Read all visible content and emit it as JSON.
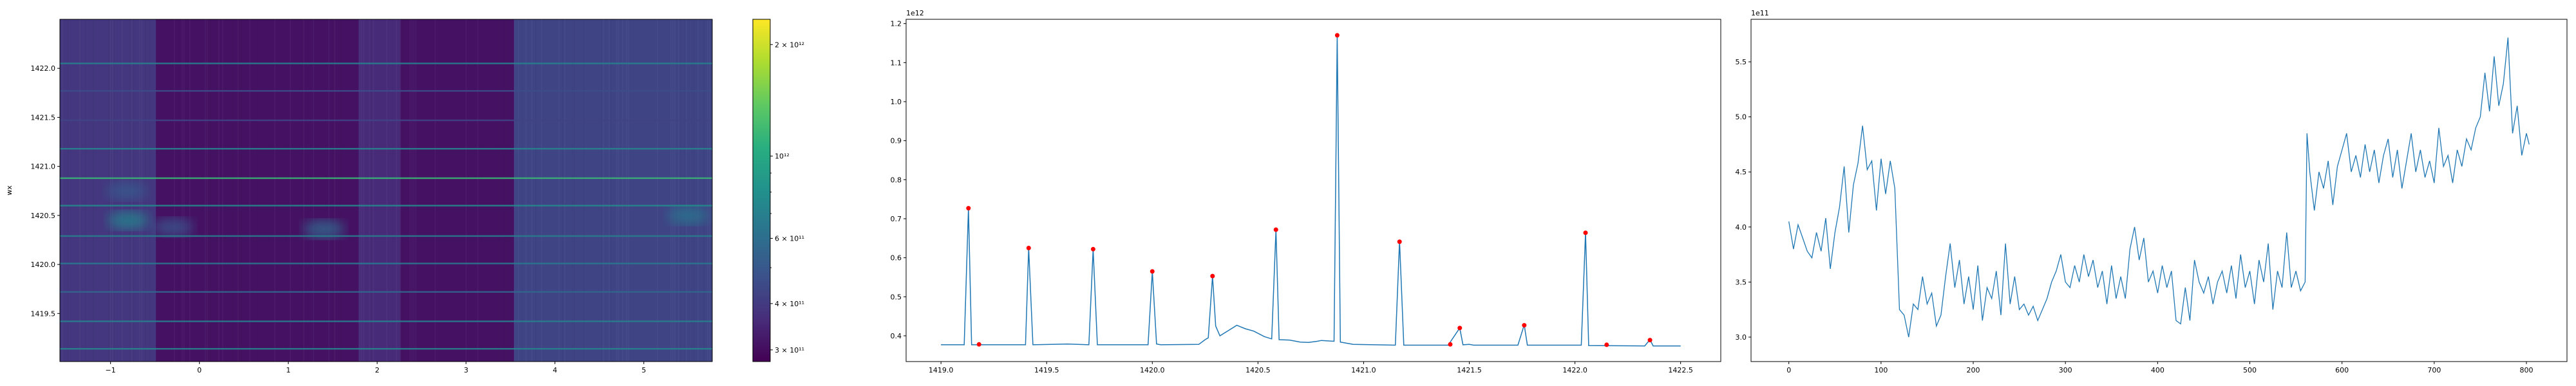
{
  "chart_data": [
    {
      "type": "heatmap",
      "ylabel": "wx",
      "xlim": [
        -1.57,
        5.77
      ],
      "ylim": [
        1419.01,
        1422.5
      ],
      "xticks": [
        -1,
        0,
        1,
        2,
        3,
        4,
        5
      ],
      "yticks": [
        1419.5,
        1420.0,
        1420.5,
        1421.0,
        1421.5,
        1422.0
      ],
      "colormap": "viridis",
      "color_scale": "log",
      "color_range": [
        279000000000.0,
        2340000000000.0
      ],
      "colorbar_ticks": [
        {
          "value": 2000000000000.0,
          "label": "2 × 10¹²"
        },
        {
          "value": 1000000000000.0,
          "label": "10¹²"
        },
        {
          "value": 600000000000.0,
          "label": "6 × 10¹¹"
        },
        {
          "value": 400000000000.0,
          "label": "4 × 10¹¹"
        },
        {
          "value": 300000000000.0,
          "label": "3 × 10¹¹"
        }
      ],
      "colorbar_minor_ticks": [
        500000000000.0,
        700000000000.0,
        800000000000.0,
        900000000000.0
      ],
      "column_bands": [
        {
          "from": -1.57,
          "to": -0.49,
          "value": 390000000000.0
        },
        {
          "from": -0.49,
          "to": 1.79,
          "value": 310000000000.0
        },
        {
          "from": 1.79,
          "to": 2.26,
          "value": 360000000000.0
        },
        {
          "from": 2.26,
          "to": 3.54,
          "value": 310000000000.0
        },
        {
          "from": 3.54,
          "to": 5.77,
          "value": 430000000000.0
        }
      ],
      "row_lines": [
        {
          "y": 1422.05,
          "value": 700000000000.0
        },
        {
          "y": 1421.77,
          "value": 460000000000.0
        },
        {
          "y": 1421.47,
          "value": 430000000000.0
        },
        {
          "y": 1421.18,
          "value": 720000000000.0
        },
        {
          "y": 1420.88,
          "value": 1150000000000.0
        },
        {
          "y": 1420.6,
          "value": 760000000000.0
        },
        {
          "y": 1420.29,
          "value": 680000000000.0
        },
        {
          "y": 1420.01,
          "value": 660000000000.0
        },
        {
          "y": 1419.72,
          "value": 560000000000.0
        },
        {
          "y": 1419.42,
          "value": 700000000000.0
        },
        {
          "y": 1419.14,
          "value": 720000000000.0
        }
      ],
      "blobs": [
        {
          "x": -0.8,
          "y": 1420.45,
          "value": 700000000000.0
        },
        {
          "x": -0.82,
          "y": 1420.75,
          "value": 500000000000.0
        },
        {
          "x": -0.3,
          "y": 1420.38,
          "value": 480000000000.0
        },
        {
          "x": 1.4,
          "y": 1420.36,
          "value": 560000000000.0
        },
        {
          "x": 5.5,
          "y": 1420.5,
          "value": 620000000000.0
        }
      ]
    },
    {
      "type": "line",
      "offset_text": "1e12",
      "xlim": [
        1418.835,
        1422.69
      ],
      "ylim": [
        0.334,
        1.211
      ],
      "xticks": [
        1419.0,
        1419.5,
        1420.0,
        1420.5,
        1421.0,
        1421.5,
        1422.0,
        1422.5
      ],
      "yticks": [
        0.4,
        0.5,
        0.6,
        0.7,
        0.8,
        0.9,
        1.0,
        1.1,
        1.2
      ],
      "line_color": "#1f77b4",
      "marker_color": "#ff0000",
      "x": [
        1419.0,
        1419.11,
        1419.13,
        1419.145,
        1419.4,
        1419.415,
        1419.435,
        1419.6,
        1419.7,
        1419.72,
        1419.74,
        1419.98,
        1420.0,
        1420.02,
        1420.04,
        1420.22,
        1420.25,
        1420.265,
        1420.285,
        1420.3,
        1420.32,
        1420.35,
        1420.4,
        1420.44,
        1420.48,
        1420.53,
        1420.565,
        1420.585,
        1420.6,
        1420.65,
        1420.7,
        1420.74,
        1420.78,
        1420.8,
        1420.86,
        1420.875,
        1420.89,
        1420.95,
        1421.15,
        1421.17,
        1421.19,
        1421.4,
        1421.455,
        1421.47,
        1421.5,
        1421.52,
        1421.73,
        1421.76,
        1421.775,
        1422.03,
        1422.05,
        1422.065,
        1422.33,
        1422.355,
        1422.37,
        1422.5
      ],
      "y": [
        0.377,
        0.377,
        0.727,
        0.377,
        0.377,
        0.625,
        0.377,
        0.379,
        0.377,
        0.622,
        0.377,
        0.377,
        0.565,
        0.379,
        0.377,
        0.378,
        0.39,
        0.395,
        0.553,
        0.425,
        0.4,
        0.41,
        0.427,
        0.418,
        0.412,
        0.398,
        0.392,
        0.672,
        0.39,
        0.389,
        0.384,
        0.383,
        0.386,
        0.388,
        0.386,
        1.17,
        0.384,
        0.378,
        0.376,
        0.643,
        0.376,
        0.376,
        0.42,
        0.377,
        0.378,
        0.376,
        0.376,
        0.428,
        0.376,
        0.376,
        0.665,
        0.375,
        0.374,
        0.39,
        0.374,
        0.374
      ],
      "markers": [
        {
          "x": 1419.13,
          "y": 0.727
        },
        {
          "x": 1419.18,
          "y": 0.378
        },
        {
          "x": 1419.415,
          "y": 0.625
        },
        {
          "x": 1419.72,
          "y": 0.622
        },
        {
          "x": 1420.0,
          "y": 0.565
        },
        {
          "x": 1420.285,
          "y": 0.553
        },
        {
          "x": 1420.585,
          "y": 0.672
        },
        {
          "x": 1420.875,
          "y": 1.17
        },
        {
          "x": 1421.17,
          "y": 0.641
        },
        {
          "x": 1421.41,
          "y": 0.378
        },
        {
          "x": 1421.455,
          "y": 0.42
        },
        {
          "x": 1421.76,
          "y": 0.427
        },
        {
          "x": 1422.05,
          "y": 0.664
        },
        {
          "x": 1422.15,
          "y": 0.377
        },
        {
          "x": 1422.355,
          "y": 0.389
        }
      ]
    },
    {
      "type": "line",
      "offset_text": "1e11",
      "xlim": [
        -41,
        844
      ],
      "ylim": [
        2.778,
        5.886
      ],
      "xticks": [
        0,
        100,
        200,
        300,
        400,
        500,
        600,
        700,
        800
      ],
      "yticks": [
        3.0,
        3.5,
        4.0,
        4.5,
        5.0,
        5.5
      ],
      "line_color": "#1f77b4",
      "x": [
        0,
        5,
        10,
        15,
        20,
        25,
        30,
        35,
        40,
        45,
        50,
        55,
        60,
        65,
        70,
        75,
        80,
        85,
        90,
        95,
        100,
        105,
        110,
        115,
        120,
        125,
        130,
        135,
        140,
        145,
        150,
        155,
        160,
        165,
        170,
        175,
        180,
        185,
        190,
        195,
        200,
        205,
        210,
        215,
        220,
        225,
        230,
        235,
        240,
        245,
        250,
        255,
        260,
        265,
        270,
        275,
        280,
        285,
        290,
        295,
        300,
        305,
        310,
        315,
        320,
        325,
        330,
        335,
        340,
        345,
        350,
        355,
        360,
        365,
        370,
        375,
        380,
        385,
        390,
        395,
        400,
        405,
        410,
        415,
        420,
        425,
        430,
        435,
        440,
        445,
        450,
        455,
        460,
        465,
        470,
        475,
        480,
        485,
        490,
        495,
        500,
        505,
        510,
        515,
        520,
        525,
        530,
        535,
        540,
        545,
        550,
        555,
        560,
        562,
        565,
        570,
        575,
        580,
        585,
        590,
        595,
        600,
        605,
        610,
        615,
        620,
        625,
        630,
        635,
        640,
        645,
        650,
        655,
        660,
        665,
        670,
        675,
        680,
        685,
        690,
        695,
        700,
        705,
        710,
        715,
        720,
        725,
        730,
        735,
        740,
        745,
        750,
        755,
        760,
        765,
        770,
        775,
        780,
        785,
        790,
        795,
        800,
        803
      ],
      "y": [
        4.05,
        3.8,
        4.02,
        3.9,
        3.78,
        3.72,
        3.95,
        3.78,
        4.08,
        3.62,
        3.95,
        4.18,
        4.55,
        3.95,
        4.38,
        4.58,
        4.92,
        4.52,
        4.6,
        4.15,
        4.62,
        4.3,
        4.6,
        4.35,
        3.25,
        3.2,
        3.0,
        3.3,
        3.25,
        3.55,
        3.3,
        3.4,
        3.1,
        3.2,
        3.55,
        3.85,
        3.45,
        3.7,
        3.3,
        3.55,
        3.25,
        3.65,
        3.15,
        3.45,
        3.35,
        3.6,
        3.2,
        3.85,
        3.3,
        3.55,
        3.25,
        3.3,
        3.2,
        3.28,
        3.15,
        3.25,
        3.35,
        3.5,
        3.6,
        3.75,
        3.5,
        3.45,
        3.65,
        3.5,
        3.75,
        3.55,
        3.7,
        3.45,
        3.6,
        3.3,
        3.65,
        3.35,
        3.55,
        3.35,
        3.8,
        4.0,
        3.7,
        3.9,
        3.5,
        3.6,
        3.4,
        3.65,
        3.45,
        3.6,
        3.15,
        3.12,
        3.45,
        3.15,
        3.7,
        3.5,
        3.4,
        3.55,
        3.3,
        3.5,
        3.6,
        3.4,
        3.65,
        3.35,
        3.75,
        3.45,
        3.6,
        3.3,
        3.7,
        3.5,
        3.85,
        3.25,
        3.6,
        3.45,
        3.95,
        3.45,
        3.6,
        3.42,
        3.5,
        4.85,
        4.5,
        4.15,
        4.5,
        4.35,
        4.6,
        4.2,
        4.55,
        4.7,
        4.85,
        4.5,
        4.65,
        4.45,
        4.75,
        4.5,
        4.7,
        4.4,
        4.65,
        4.8,
        4.45,
        4.7,
        4.35,
        4.6,
        4.85,
        4.5,
        4.7,
        4.45,
        4.6,
        4.4,
        4.9,
        4.55,
        4.65,
        4.4,
        4.7,
        4.55,
        4.8,
        4.7,
        4.9,
        5.0,
        5.4,
        5.05,
        5.55,
        5.1,
        5.3,
        5.72,
        4.85,
        5.1,
        4.65,
        4.85,
        4.75
      ]
    }
  ]
}
